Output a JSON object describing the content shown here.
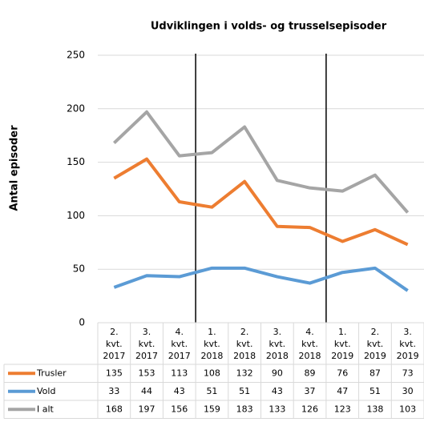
{
  "chart_data": {
    "type": "line",
    "title": "Udviklingen i volds- og trusselsepisoder",
    "ylabel": "Antal episoder",
    "categories": [
      "2. kvt. 2017",
      "3. kvt. 2017",
      "4. kvt. 2017",
      "1. kvt. 2018",
      "2. kvt. 2018",
      "3. kvt. 2018",
      "4. kvt. 2018",
      "1. kvt. 2019",
      "2. kvt. 2019",
      "3. kvt. 2019"
    ],
    "series": [
      {
        "name": "Trusler",
        "color": "#ed7d31",
        "values": [
          135,
          153,
          113,
          108,
          132,
          90,
          89,
          76,
          87,
          73
        ]
      },
      {
        "name": "Vold",
        "color": "#5b9bd5",
        "values": [
          33,
          44,
          43,
          51,
          51,
          43,
          37,
          47,
          51,
          30
        ]
      },
      {
        "name": "I alt",
        "color": "#a5a5a5",
        "values": [
          168,
          197,
          156,
          159,
          183,
          133,
          126,
          123,
          138,
          103
        ]
      }
    ],
    "ylim": [
      0,
      250
    ],
    "yticks": [
      0,
      50,
      100,
      150,
      200,
      250
    ],
    "grid": true
  }
}
